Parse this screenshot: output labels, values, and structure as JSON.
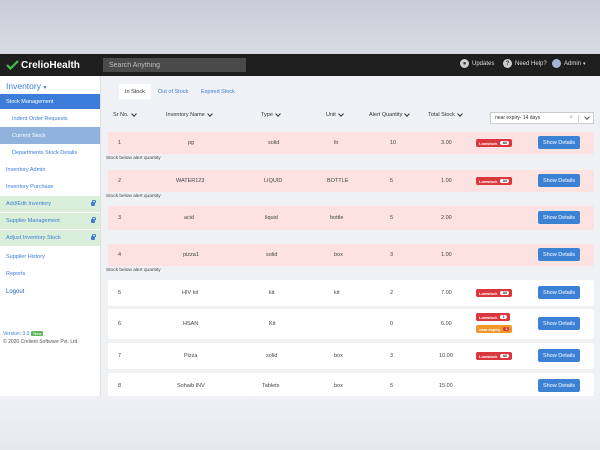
{
  "header": {
    "logo_part1": "Crelio",
    "logo_part2": "Health",
    "search_placeholder": "Search Anything",
    "updates": "Updates",
    "help": "Need Help?",
    "user": "Admin"
  },
  "sidebar": {
    "title": "Inventory",
    "items": [
      {
        "label": "Stock Management"
      },
      {
        "label": "Indent Order Requests"
      },
      {
        "label": "Current Stock"
      },
      {
        "label": "Departments Stock Details"
      },
      {
        "label": "Inventory Admin"
      },
      {
        "label": "Inventory Purchase"
      },
      {
        "label": "Add/Edit Inventory"
      },
      {
        "label": "Supplier Management"
      },
      {
        "label": "Adjust Inventory Stock"
      },
      {
        "label": "Supplier History"
      },
      {
        "label": "Reports"
      },
      {
        "label": "Logout"
      }
    ],
    "version": "Version: 3.0",
    "new_badge": "New",
    "copyright": "© 2020 Crelient Software Pvt. Ltd."
  },
  "tabs": [
    {
      "label": "In Stock"
    },
    {
      "label": "Out of Stock"
    },
    {
      "label": "Expired Stock"
    }
  ],
  "columns": [
    "Sr No.",
    "Inventory Name",
    "Type",
    "Unit",
    "Alert Quantity",
    "Total Stock"
  ],
  "filter": {
    "value": "near expiry- 14 days",
    "clear": "×"
  },
  "note_text": "Stock below alert quantity",
  "button_label": "Show Details",
  "badges": {
    "low": "Lowstock",
    "all": "All",
    "near_expiry": "near expiry",
    "one": "1"
  },
  "rows": [
    {
      "sr": "1",
      "name": "pg",
      "type": "solid",
      "unit": "ltr",
      "alert": "10",
      "total": "3.00"
    },
    {
      "sr": "2",
      "name": "WATER123",
      "type": "LIQUID",
      "unit": "BOTTLE",
      "alert": "5",
      "total": "1.00"
    },
    {
      "sr": "3",
      "name": "acid",
      "type": "liquid",
      "unit": "bottle",
      "alert": "5",
      "total": "2.00"
    },
    {
      "sr": "4",
      "name": "pizza1",
      "type": "solid",
      "unit": "box",
      "alert": "3",
      "total": "1.00"
    },
    {
      "sr": "5",
      "name": "HIV kit",
      "type": "kit",
      "unit": "kit",
      "alert": "2",
      "total": "7.00"
    },
    {
      "sr": "6",
      "name": "HSAN",
      "type": "Kit",
      "unit": "",
      "alert": "0",
      "total": "6.00"
    },
    {
      "sr": "7",
      "name": "Pizza",
      "type": "solid",
      "unit": "box",
      "alert": "3",
      "total": "10.00"
    },
    {
      "sr": "8",
      "name": "Sohaib INV",
      "type": "Tablets",
      "unit": "box",
      "alert": "5",
      "total": "15.00"
    }
  ],
  "colors": {
    "accent": "#3b7dd8",
    "pink_row": "#fde2e2",
    "lowstock": "#d9363e",
    "near_expiry": "#f0962b"
  }
}
